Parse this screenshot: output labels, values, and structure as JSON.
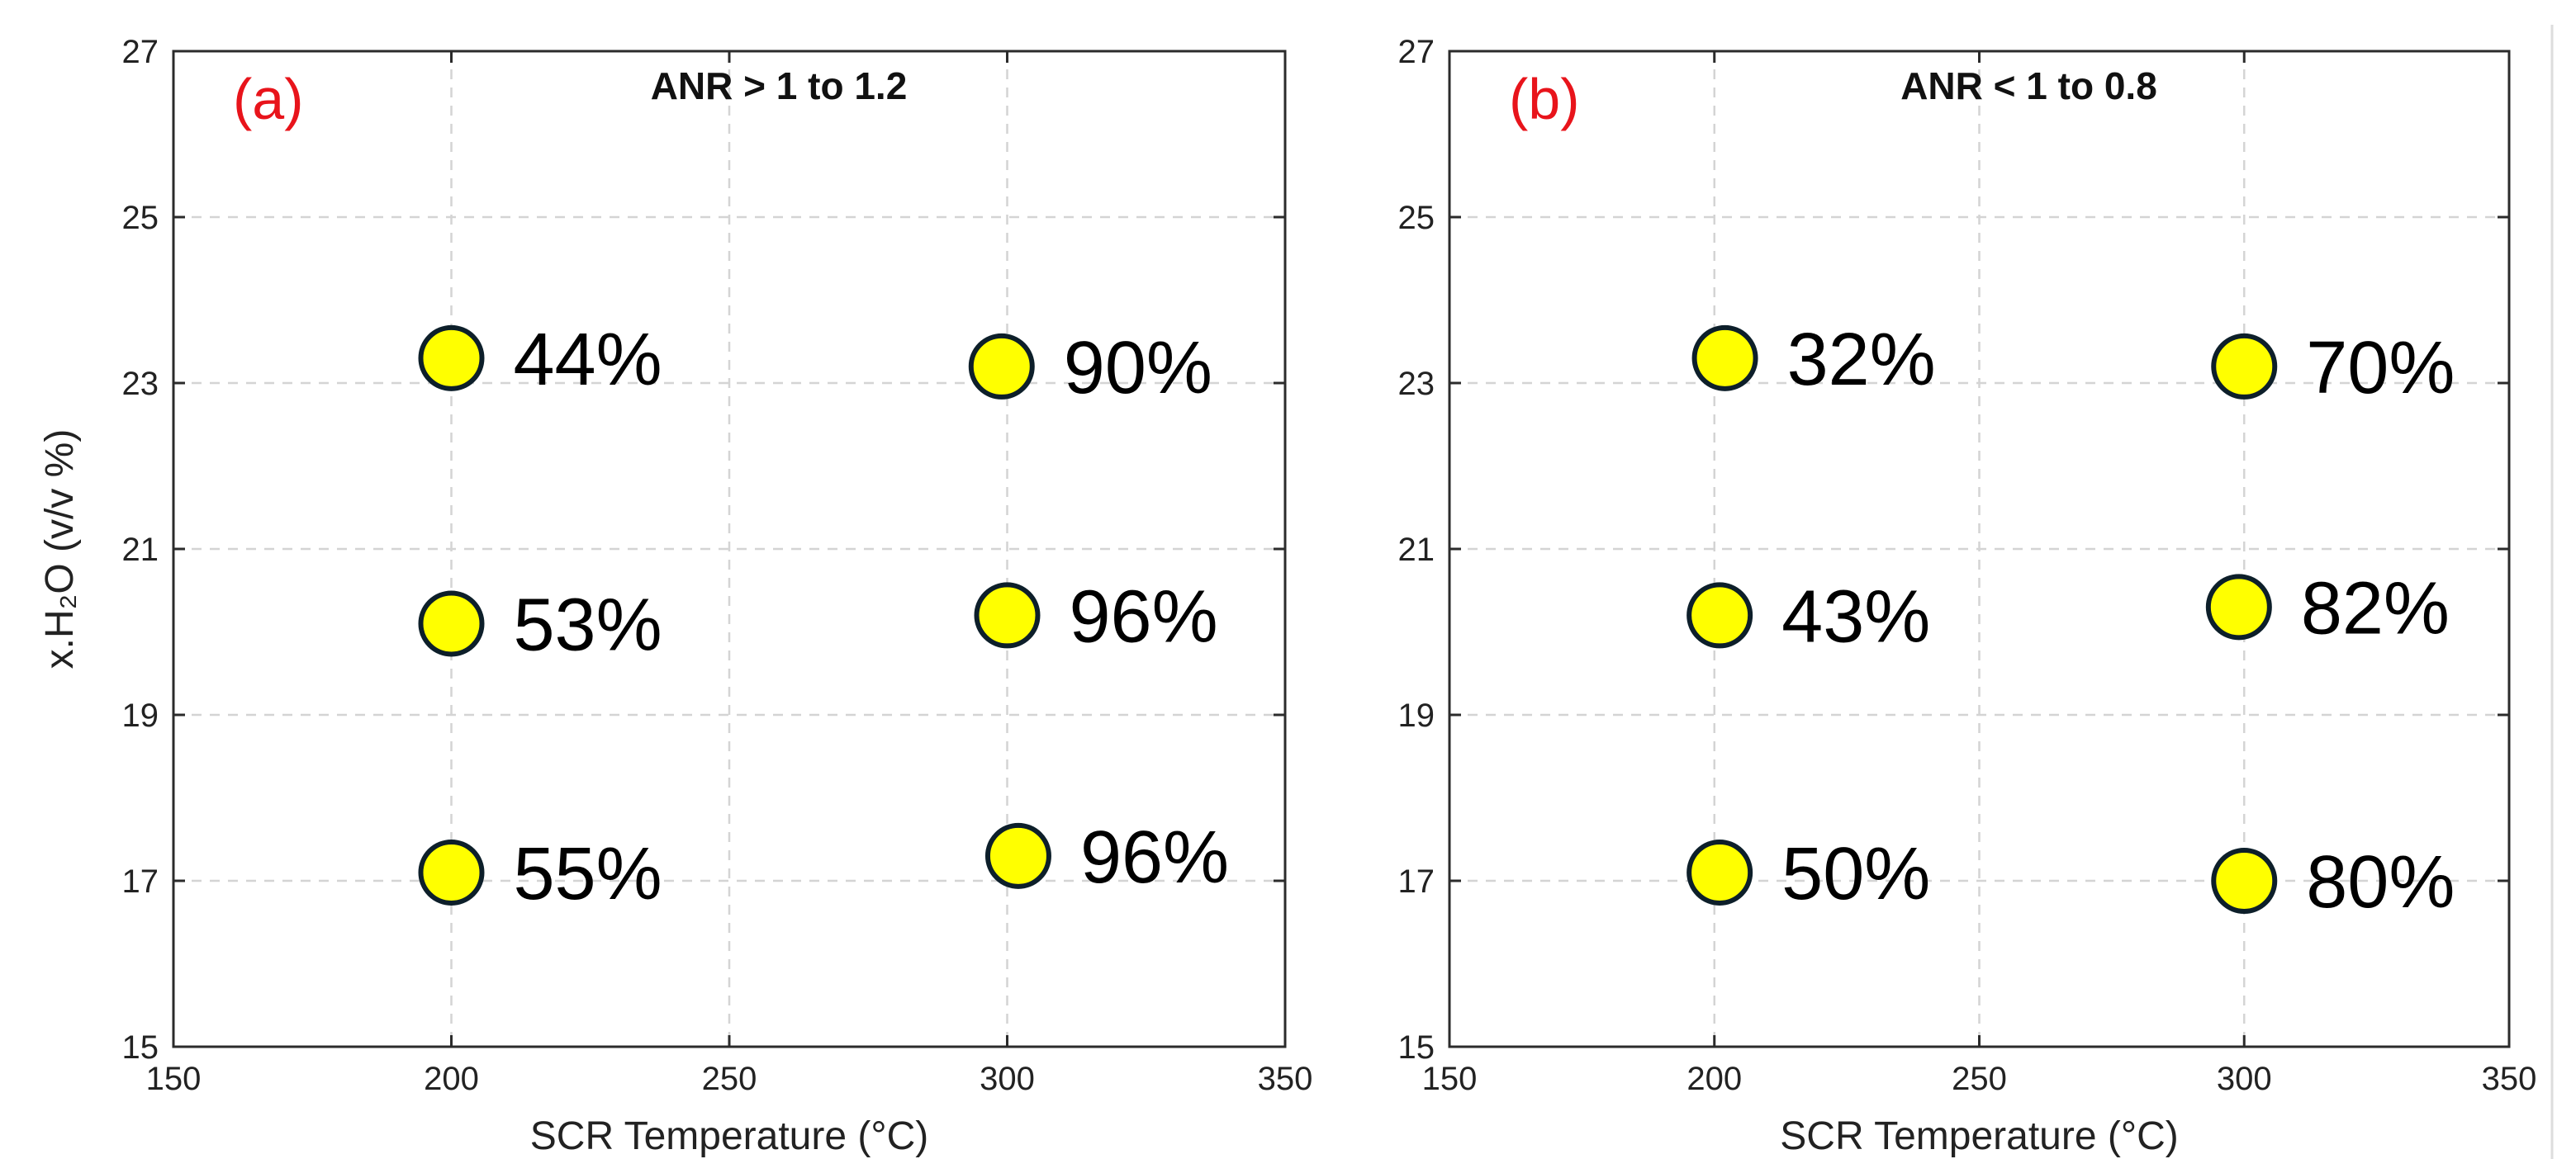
{
  "colors": {
    "marker_fill": "#ffff00",
    "marker_edge": "#0d1f2a",
    "panel_tag": "#e8141b",
    "grid": "#d4d4d4"
  },
  "chart_data": [
    {
      "type": "scatter",
      "panel_tag": "(a)",
      "title": "ANR > 1 to 1.2",
      "xlabel": "SCR Temperature (°C)",
      "ylabel": "x.H₂O  (v/v  %)",
      "xlim": [
        150,
        350
      ],
      "ylim": [
        15,
        27
      ],
      "xticks": [
        150,
        200,
        250,
        300,
        350
      ],
      "yticks": [
        15,
        17,
        19,
        21,
        23,
        25,
        27
      ],
      "grid": true,
      "points": [
        {
          "x": 200,
          "y": 23.3,
          "label": "44%"
        },
        {
          "x": 200,
          "y": 20.1,
          "label": "53%"
        },
        {
          "x": 200,
          "y": 17.1,
          "label": "55%"
        },
        {
          "x": 299,
          "y": 23.2,
          "label": "90%"
        },
        {
          "x": 300,
          "y": 20.2,
          "label": "96%"
        },
        {
          "x": 302,
          "y": 17.3,
          "label": "96%"
        }
      ]
    },
    {
      "type": "scatter",
      "panel_tag": "(b)",
      "title": "ANR < 1 to 0.8",
      "xlabel": "SCR Temperature (°C)",
      "ylabel": "",
      "xlim": [
        150,
        350
      ],
      "ylim": [
        15,
        27
      ],
      "xticks": [
        150,
        200,
        250,
        300,
        350
      ],
      "yticks": [
        15,
        17,
        19,
        21,
        23,
        25,
        27
      ],
      "grid": true,
      "points": [
        {
          "x": 202,
          "y": 23.3,
          "label": "32%"
        },
        {
          "x": 201,
          "y": 20.2,
          "label": "43%"
        },
        {
          "x": 201,
          "y": 17.1,
          "label": "50%"
        },
        {
          "x": 300,
          "y": 23.2,
          "label": "70%"
        },
        {
          "x": 299,
          "y": 20.3,
          "label": "82%"
        },
        {
          "x": 300,
          "y": 17.0,
          "label": "80%"
        }
      ]
    }
  ]
}
